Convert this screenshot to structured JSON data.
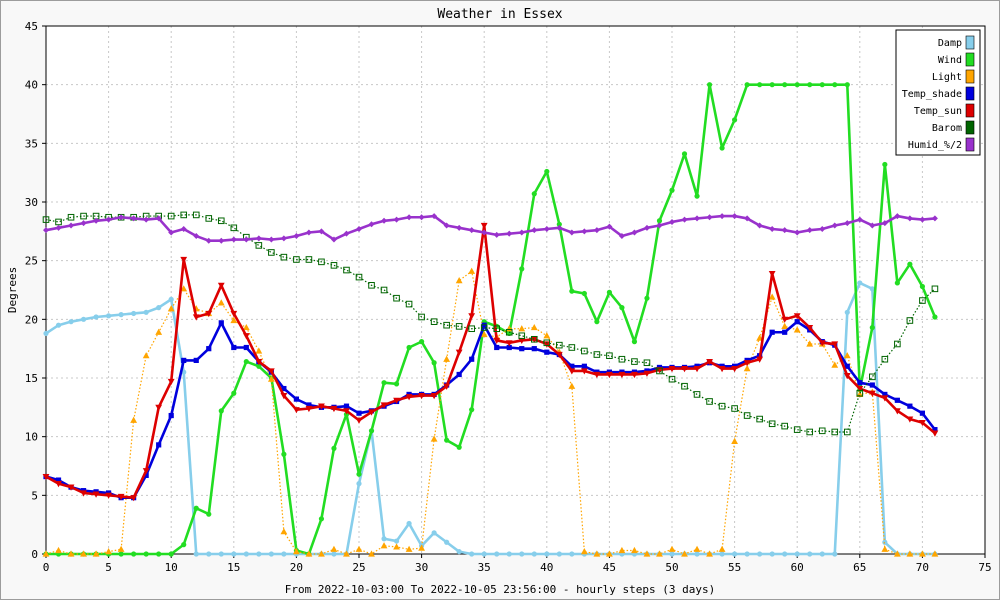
{
  "chart_data": {
    "type": "line",
    "title": "Weather in Essex",
    "xlabel": "From 2022-10-03:00 To 2022-10-05 23:56:00 - hourly steps (3 days)",
    "ylabel": "Degrees",
    "xlim": [
      0,
      75
    ],
    "ylim": [
      0,
      45
    ],
    "x_ticks": [
      0,
      5,
      10,
      15,
      20,
      25,
      30,
      35,
      40,
      45,
      50,
      55,
      60,
      65,
      70,
      75
    ],
    "y_ticks": [
      0,
      5,
      10,
      15,
      20,
      25,
      30,
      35,
      40,
      45
    ],
    "grid": true,
    "legend_position": "top-right",
    "series": [
      {
        "name": "Damp",
        "color": "#87ceeb",
        "style": "solid",
        "marker": "circle",
        "values": [
          18.8,
          19.5,
          19.8,
          20.0,
          20.2,
          20.3,
          20.4,
          20.5,
          20.6,
          21.0,
          21.7,
          15.5,
          0,
          0,
          0,
          0,
          0,
          0,
          0,
          0,
          0,
          0,
          0,
          0,
          0,
          6.0,
          10.5,
          1.3,
          1.1,
          2.6,
          0.7,
          1.8,
          1.0,
          0.2,
          0,
          0,
          0,
          0,
          0,
          0,
          0,
          0,
          0,
          0,
          0,
          0,
          0,
          0,
          0,
          0,
          0,
          0,
          0,
          0,
          0,
          0,
          0,
          0,
          0,
          0,
          0,
          0,
          0,
          0,
          20.6,
          23.1,
          22.6,
          1.0,
          0,
          0,
          0,
          0
        ]
      },
      {
        "name": "Wind",
        "color": "#22dd22",
        "style": "solid",
        "marker": "circle",
        "values": [
          0,
          0,
          0,
          0,
          0,
          0,
          0,
          0,
          0,
          0,
          0,
          0.8,
          3.9,
          3.4,
          12.2,
          13.7,
          16.4,
          16.0,
          15.0,
          8.5,
          0.3,
          0,
          3.0,
          9.0,
          11.9,
          6.8,
          10.5,
          14.6,
          14.5,
          17.6,
          18.1,
          16.3,
          9.7,
          9.1,
          12.3,
          19.8,
          19.4,
          18.8,
          24.3,
          30.7,
          32.6,
          28.1,
          22.4,
          22.2,
          19.8,
          22.3,
          21.0,
          18.1,
          21.8,
          28.4,
          31.0,
          34.1,
          30.5,
          40.0,
          34.6,
          37.0,
          40.0,
          40.0,
          40.0,
          40.0,
          40.0,
          40.0,
          40.0,
          40.0,
          40.0,
          14.0,
          19.3,
          33.2,
          23.1,
          24.7,
          22.8,
          20.2
        ]
      },
      {
        "name": "Light",
        "color": "#ffa500",
        "style": "dotted",
        "marker": "triangle",
        "values": [
          0,
          0.3,
          0,
          0,
          0,
          0.2,
          0.4,
          11.4,
          16.9,
          18.9,
          20.9,
          22.6,
          20.9,
          20.5,
          21.4,
          19.9,
          19.3,
          17.3,
          14.9,
          1.9,
          0.2,
          0,
          0,
          0.4,
          0,
          0.4,
          0,
          0.7,
          0.6,
          0.4,
          0.5,
          9.8,
          16.6,
          23.3,
          24.1,
          18.7,
          18.5,
          19.2,
          19.2,
          19.3,
          18.6,
          17.2,
          14.3,
          0.2,
          0,
          0,
          0.3,
          0.3,
          0,
          0,
          0.4,
          0,
          0.4,
          0,
          0.4,
          9.6,
          15.8,
          18.4,
          21.9,
          19.4,
          19.1,
          17.9,
          17.9,
          16.1,
          16.9,
          13.6,
          13.8,
          0.4,
          0,
          0,
          0,
          0
        ]
      },
      {
        "name": "Temp_shade",
        "color": "#0000dd",
        "style": "solid",
        "marker": "square",
        "values": [
          6.6,
          6.3,
          5.7,
          5.4,
          5.3,
          5.2,
          4.8,
          4.8,
          6.7,
          9.3,
          11.8,
          16.5,
          16.5,
          17.5,
          19.7,
          17.6,
          17.6,
          16.4,
          15.5,
          14.1,
          13.2,
          12.7,
          12.5,
          12.5,
          12.6,
          12.0,
          12.2,
          12.6,
          13.0,
          13.6,
          13.6,
          13.6,
          14.4,
          15.3,
          16.6,
          19.5,
          17.6,
          17.6,
          17.5,
          17.5,
          17.2,
          17.0,
          16.0,
          16.0,
          15.5,
          15.5,
          15.5,
          15.5,
          15.6,
          15.9,
          15.9,
          15.9,
          16.0,
          16.3,
          16.0,
          16.0,
          16.5,
          16.9,
          18.9,
          18.9,
          19.8,
          19.1,
          18.1,
          17.8,
          16.0,
          14.6,
          14.4,
          13.6,
          13.1,
          12.6,
          12.0,
          10.6
        ]
      },
      {
        "name": "Temp_sun",
        "color": "#dd0000",
        "style": "solid",
        "marker": "triangle-down",
        "values": [
          6.6,
          6.0,
          5.7,
          5.2,
          5.1,
          5.0,
          4.9,
          4.8,
          7.1,
          12.5,
          14.7,
          25.1,
          20.2,
          20.5,
          22.9,
          20.5,
          18.6,
          16.4,
          15.6,
          13.5,
          12.3,
          12.4,
          12.6,
          12.4,
          12.2,
          11.4,
          12.1,
          12.7,
          13.1,
          13.4,
          13.5,
          13.5,
          14.3,
          17.2,
          20.3,
          28.0,
          18.2,
          18.0,
          18.2,
          18.3,
          17.9,
          17.0,
          15.6,
          15.6,
          15.3,
          15.3,
          15.3,
          15.3,
          15.4,
          15.7,
          15.8,
          15.8,
          15.8,
          16.4,
          15.8,
          15.8,
          16.3,
          16.6,
          23.9,
          20.0,
          20.3,
          19.3,
          18.0,
          17.9,
          15.2,
          14.1,
          13.7,
          13.3,
          12.2,
          11.5,
          11.2,
          10.3
        ]
      },
      {
        "name": "Barom",
        "color": "#006400",
        "style": "dotted",
        "marker": "open-square",
        "values": [
          28.5,
          28.3,
          28.7,
          28.8,
          28.8,
          28.7,
          28.7,
          28.7,
          28.8,
          28.8,
          28.8,
          28.9,
          28.9,
          28.6,
          28.4,
          27.8,
          27.0,
          26.3,
          25.7,
          25.3,
          25.1,
          25.1,
          24.9,
          24.6,
          24.2,
          23.6,
          22.9,
          22.5,
          21.8,
          21.3,
          20.2,
          19.8,
          19.5,
          19.4,
          19.2,
          19.3,
          19.2,
          18.9,
          18.6,
          18.3,
          18.0,
          17.8,
          17.6,
          17.3,
          17.0,
          16.9,
          16.6,
          16.4,
          16.3,
          15.6,
          14.9,
          14.3,
          13.6,
          13.0,
          12.6,
          12.4,
          11.8,
          11.5,
          11.1,
          10.9,
          10.6,
          10.4,
          10.5,
          10.4,
          10.4,
          13.7,
          15.1,
          16.6,
          17.9,
          19.9,
          21.6,
          22.6
        ]
      },
      {
        "name": "Humid_%/2",
        "color": "#9932cc",
        "style": "solid",
        "marker": "diamond",
        "values": [
          27.6,
          27.8,
          28.0,
          28.2,
          28.4,
          28.5,
          28.7,
          28.6,
          28.5,
          28.6,
          27.4,
          27.7,
          27.1,
          26.7,
          26.7,
          26.8,
          26.8,
          26.9,
          26.8,
          26.9,
          27.1,
          27.4,
          27.5,
          26.8,
          27.3,
          27.7,
          28.1,
          28.4,
          28.5,
          28.7,
          28.7,
          28.8,
          28.0,
          27.8,
          27.6,
          27.4,
          27.2,
          27.3,
          27.4,
          27.6,
          27.7,
          27.8,
          27.4,
          27.5,
          27.6,
          27.9,
          27.1,
          27.4,
          27.8,
          28.0,
          28.3,
          28.5,
          28.6,
          28.7,
          28.8,
          28.8,
          28.6,
          28.0,
          27.7,
          27.6,
          27.4,
          27.6,
          27.7,
          28.0,
          28.2,
          28.5,
          28.0,
          28.2,
          28.8,
          28.6,
          28.5,
          28.6
        ]
      }
    ]
  }
}
